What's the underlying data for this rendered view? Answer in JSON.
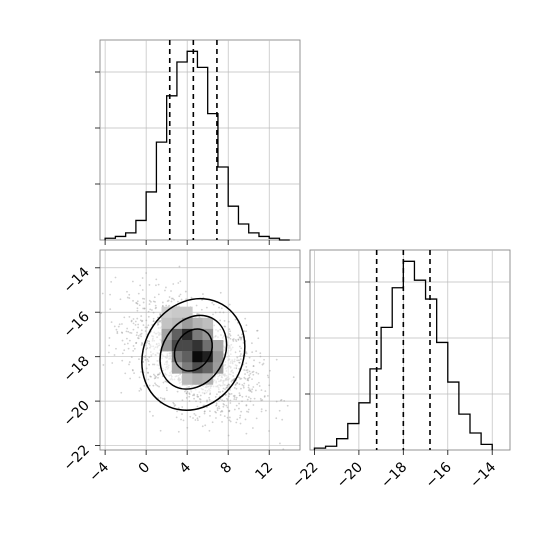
{
  "chart_data": {
    "type": "corner",
    "parameters": [
      {
        "name": "",
        "range": [
          -4.5,
          15
        ]
      },
      {
        "name": "",
        "range": [
          -22.2,
          -13.2
        ]
      }
    ],
    "panels": [
      {
        "type": "histogram",
        "parameter": 0,
        "bin_edges": [
          -4,
          -3,
          -2,
          -1,
          0,
          1,
          2,
          3,
          4,
          5,
          6,
          7,
          8,
          9,
          10,
          11,
          12,
          13,
          14
        ],
        "counts": [
          1,
          2,
          4,
          11,
          27,
          55,
          81,
          100,
          106,
          97,
          71,
          41,
          19,
          9,
          4,
          2,
          1,
          0
        ],
        "quantiles": [
          2.3,
          4.6,
          6.9
        ],
        "grid": true
      },
      {
        "type": "histogram",
        "parameter": 1,
        "bin_edges": [
          -22,
          -21.5,
          -21,
          -20.5,
          -20,
          -19.5,
          -19,
          -18.5,
          -18,
          -17.5,
          -17,
          -16.5,
          -16,
          -15.5,
          -15,
          -14.5,
          -14
        ],
        "counts": [
          1,
          2,
          6,
          14,
          25,
          43,
          65,
          86,
          100,
          90,
          80,
          57,
          36,
          19,
          9,
          3
        ],
        "quantiles": [
          -19.2,
          -18.0,
          -16.8
        ],
        "grid": true
      },
      {
        "type": "density2d",
        "x_parameter": 0,
        "y_parameter": 1,
        "ticks_x": [
          "−4",
          "0",
          "4",
          "8",
          "12"
        ],
        "ticks_y": [
          "−14",
          "−16",
          "−18",
          "−20",
          "−22"
        ],
        "cells": [
          {
            "x": 2,
            "y": -16,
            "w": 0.12
          },
          {
            "x": 3,
            "y": -16,
            "w": 0.15
          },
          {
            "x": 4,
            "y": -16,
            "w": 0.15
          },
          {
            "x": 5,
            "y": -16.5,
            "w": 0.25
          },
          {
            "x": 3,
            "y": -16.5,
            "w": 0.22
          },
          {
            "x": 4,
            "y": -16.5,
            "w": 0.35
          },
          {
            "x": 6,
            "y": -16.5,
            "w": 0.2
          },
          {
            "x": 2,
            "y": -16.5,
            "w": 0.18
          },
          {
            "x": 2,
            "y": -17,
            "w": 0.32
          },
          {
            "x": 3,
            "y": -17,
            "w": 0.62
          },
          {
            "x": 4,
            "y": -17,
            "w": 0.85
          },
          {
            "x": 5,
            "y": -17,
            "w": 0.5
          },
          {
            "x": 6,
            "y": -17,
            "w": 0.38
          },
          {
            "x": 2,
            "y": -17.5,
            "w": 0.38
          },
          {
            "x": 3,
            "y": -17.5,
            "w": 0.72
          },
          {
            "x": 4,
            "y": -17.5,
            "w": 0.72
          },
          {
            "x": 5,
            "y": -17.5,
            "w": 0.82
          },
          {
            "x": 6,
            "y": -17.5,
            "w": 0.55
          },
          {
            "x": 7,
            "y": -17.5,
            "w": 0.3
          },
          {
            "x": 3,
            "y": -18,
            "w": 0.5
          },
          {
            "x": 4,
            "y": -18,
            "w": 0.62
          },
          {
            "x": 5,
            "y": -18,
            "w": 1.0
          },
          {
            "x": 6,
            "y": -18,
            "w": 0.9
          },
          {
            "x": 7,
            "y": -18,
            "w": 0.38
          },
          {
            "x": 3,
            "y": -18.5,
            "w": 0.3
          },
          {
            "x": 4,
            "y": -18.5,
            "w": 0.5
          },
          {
            "x": 5,
            "y": -18.5,
            "w": 0.7
          },
          {
            "x": 6,
            "y": -18.5,
            "w": 0.6
          },
          {
            "x": 7,
            "y": -18.5,
            "w": 0.35
          },
          {
            "x": 4,
            "y": -19,
            "w": 0.22
          },
          {
            "x": 5,
            "y": -19,
            "w": 0.28
          },
          {
            "x": 6,
            "y": -19,
            "w": 0.25
          }
        ],
        "contours": [
          {
            "cx": 4.6,
            "cy": -17.7,
            "rx": 1.7,
            "ry": 1.0,
            "rotate": 32
          },
          {
            "cx": 4.6,
            "cy": -17.8,
            "rx": 3.0,
            "ry": 1.75,
            "rotate": 32
          },
          {
            "cx": 4.6,
            "cy": -17.9,
            "rx": 4.8,
            "ry": 2.6,
            "rotate": 30
          }
        ],
        "scatter_spread": {
          "center": [
            4.6,
            -18.0
          ],
          "sd": [
            3.1,
            1.3
          ],
          "rho": -0.45
        }
      },
      {
        "type": "empty"
      }
    ],
    "hist1_ticks_x": [
      "−22",
      "−20",
      "−18",
      "−16",
      "−14"
    ]
  }
}
